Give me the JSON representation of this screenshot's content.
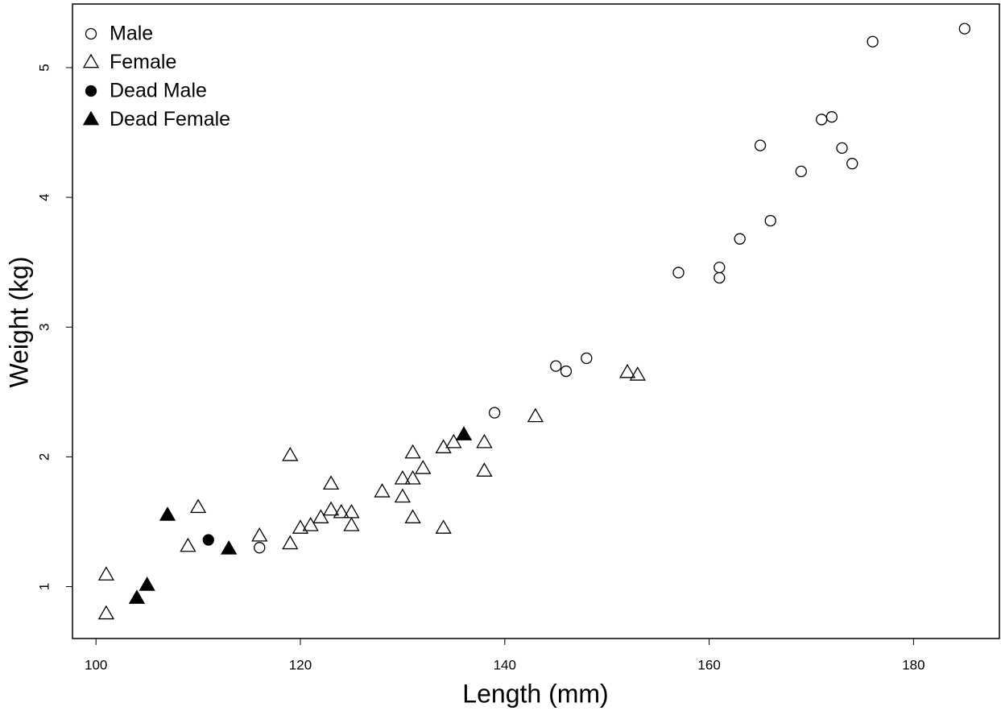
{
  "chart_data": {
    "type": "scatter",
    "x_label": "Length (mm)",
    "y_label": "Weight (kg)",
    "xlim": [
      97.7,
      188.4
    ],
    "ylim": [
      0.6,
      5.49
    ],
    "xticks": [
      100,
      120,
      140,
      160,
      180
    ],
    "yticks": [
      1,
      2,
      3,
      4,
      5
    ],
    "legend_position": "upper-left",
    "series": [
      {
        "name": "Male",
        "color": "#000000",
        "marker": "circle",
        "filled": false,
        "x": [
          185,
          176,
          172,
          171,
          165,
          173,
          174,
          169,
          166,
          163,
          157,
          161,
          161,
          148,
          145,
          146,
          139,
          116
        ],
        "y": [
          5.3,
          5.2,
          4.62,
          4.6,
          4.4,
          4.38,
          4.26,
          4.2,
          3.82,
          3.68,
          3.42,
          3.46,
          3.38,
          2.76,
          2.7,
          2.66,
          2.34,
          1.3
        ]
      },
      {
        "name": "Female",
        "color": "#000000",
        "marker": "triangle",
        "filled": false,
        "x": [
          101,
          101,
          109,
          110,
          116,
          119,
          119,
          120,
          121,
          122,
          123,
          123,
          124,
          125,
          125,
          128,
          130,
          130,
          131,
          131,
          131,
          132,
          134,
          134,
          135,
          138,
          138,
          143,
          152,
          153
        ],
        "y": [
          1.09,
          0.79,
          1.31,
          1.61,
          1.39,
          1.33,
          2.01,
          1.45,
          1.47,
          1.53,
          1.79,
          1.59,
          1.57,
          1.57,
          1.47,
          1.73,
          1.69,
          1.83,
          1.83,
          2.03,
          1.53,
          1.91,
          2.07,
          1.45,
          2.11,
          2.11,
          1.89,
          2.31,
          2.65,
          2.63
        ]
      },
      {
        "name": "Dead Male",
        "color": "#000000",
        "marker": "circle",
        "filled": true,
        "x": [
          111
        ],
        "y": [
          1.36
        ]
      },
      {
        "name": "Dead Female",
        "color": "#000000",
        "marker": "triangle",
        "filled": true,
        "x": [
          104,
          105,
          107,
          113,
          136
        ],
        "y": [
          0.91,
          1.01,
          1.55,
          1.29,
          2.17
        ]
      }
    ]
  }
}
